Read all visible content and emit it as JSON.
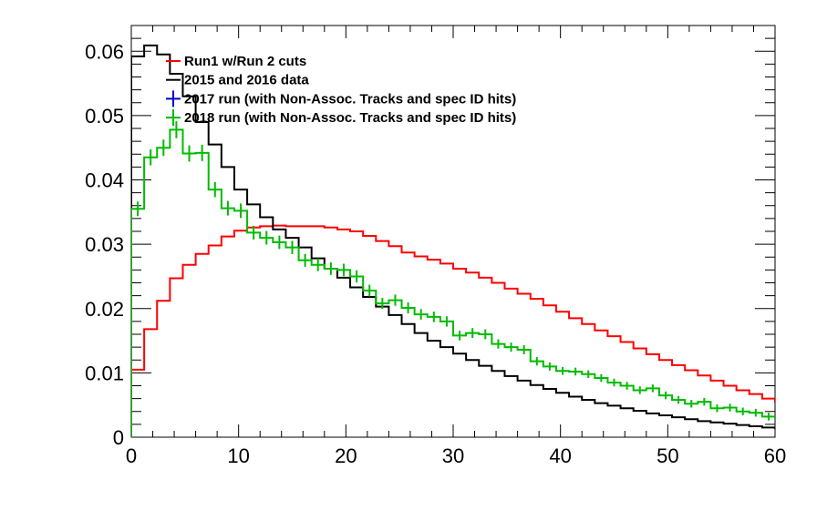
{
  "chart_data": {
    "type": "step-histogram",
    "xlim": [
      0,
      60
    ],
    "ylim": [
      0,
      0.064
    ],
    "bin_width": 1.2,
    "x_ticks": [
      0,
      10,
      20,
      30,
      40,
      50,
      60
    ],
    "x_tick_labels": [
      "0",
      "10",
      "20",
      "30",
      "40",
      "50",
      "60"
    ],
    "y_ticks": [
      0,
      0.01,
      0.02,
      0.03,
      0.04,
      0.05,
      0.06
    ],
    "y_tick_labels": [
      "0",
      "0.01",
      "0.02",
      "0.03",
      "0.04",
      "0.05",
      "0.06"
    ],
    "legend_position": "top-left",
    "series": [
      {
        "name": "Run1 w/Run 2 cuts",
        "color": "#ff0000",
        "style": "step",
        "values": [
          0.0105,
          0.0168,
          0.0212,
          0.0247,
          0.0268,
          0.0285,
          0.0298,
          0.0312,
          0.0321,
          0.0326,
          0.0328,
          0.0329,
          0.0328,
          0.0328,
          0.0328,
          0.0326,
          0.0323,
          0.032,
          0.0313,
          0.0305,
          0.0297,
          0.0287,
          0.0281,
          0.0276,
          0.027,
          0.0262,
          0.0256,
          0.0248,
          0.024,
          0.0231,
          0.0223,
          0.0215,
          0.0205,
          0.0195,
          0.0185,
          0.0176,
          0.0166,
          0.0157,
          0.0148,
          0.0138,
          0.0129,
          0.012,
          0.0112,
          0.0104,
          0.0096,
          0.0088,
          0.008,
          0.0073,
          0.0067,
          0.006,
          0.0055,
          0.005,
          0.0046,
          0.0041,
          0.0037,
          0.0033,
          0.0029,
          0.0026,
          0.0023,
          0.002,
          0.0019,
          0.0018,
          0.0017,
          0.0016,
          0.0015,
          0.0015,
          0.0014,
          0.0013,
          0.0013,
          0.0012,
          0.0012,
          0.0012,
          0.0011,
          0.0011,
          0.0011,
          0.001,
          0.001,
          0.0009,
          0.0009,
          0.0009,
          0.0008,
          0.0008,
          0.0008,
          0.0008,
          0.0007,
          0.0007,
          0.0007,
          0.0006,
          0.0006,
          0.0006,
          0.0006,
          0.0005,
          0.0005,
          0.0005,
          0.0005,
          0.0004,
          0.0004,
          0.0004,
          0.0004,
          0.0004
        ]
      },
      {
        "name": "2015 and 2016 data",
        "color": "#000000",
        "style": "step",
        "values": [
          0.0592,
          0.0609,
          0.0595,
          0.0565,
          0.053,
          0.049,
          0.0455,
          0.042,
          0.0385,
          0.0362,
          0.0342,
          0.0323,
          0.031,
          0.0295,
          0.0278,
          0.0262,
          0.0248,
          0.0233,
          0.0218,
          0.0203,
          0.019,
          0.0176,
          0.0162,
          0.015,
          0.014,
          0.013,
          0.012,
          0.0111,
          0.0103,
          0.0095,
          0.0088,
          0.0081,
          0.0075,
          0.0069,
          0.0063,
          0.0058,
          0.0053,
          0.0049,
          0.0045,
          0.0041,
          0.0037,
          0.0034,
          0.0031,
          0.0028,
          0.0025,
          0.0023,
          0.0021,
          0.0019,
          0.0017,
          0.0015,
          0.0014,
          0.0012,
          0.0011,
          0.001,
          0.0009,
          0.0008,
          0.0007,
          0.0006,
          0.0006,
          0.0005
        ]
      },
      {
        "name": "2017 run (with Non-Assoc. Tracks and spec ID hits)",
        "color": "#0000cc",
        "style": "errorbar",
        "values": []
      },
      {
        "name": "2018 run (with Non-Assoc. Tracks and spec ID hits)",
        "color": "#00bb00",
        "style": "step-errorbar",
        "values": [
          0.0355,
          0.0435,
          0.045,
          0.0478,
          0.0441,
          0.0442,
          0.0385,
          0.0356,
          0.0352,
          0.0318,
          0.031,
          0.0303,
          0.0295,
          0.0275,
          0.0268,
          0.0262,
          0.026,
          0.025,
          0.0228,
          0.0208,
          0.0213,
          0.0201,
          0.0191,
          0.0187,
          0.018,
          0.0158,
          0.0162,
          0.016,
          0.0145,
          0.014,
          0.0136,
          0.0118,
          0.011,
          0.0103,
          0.0102,
          0.0098,
          0.0092,
          0.0085,
          0.008,
          0.0073,
          0.0076,
          0.0065,
          0.0058,
          0.0052,
          0.0055,
          0.0045,
          0.0046,
          0.004,
          0.0038,
          0.0032,
          0.003,
          0.0028,
          0.0024,
          0.0022,
          0.002,
          0.0021,
          0.0018,
          0.0016,
          0.0015,
          0.0014
        ]
      }
    ]
  }
}
